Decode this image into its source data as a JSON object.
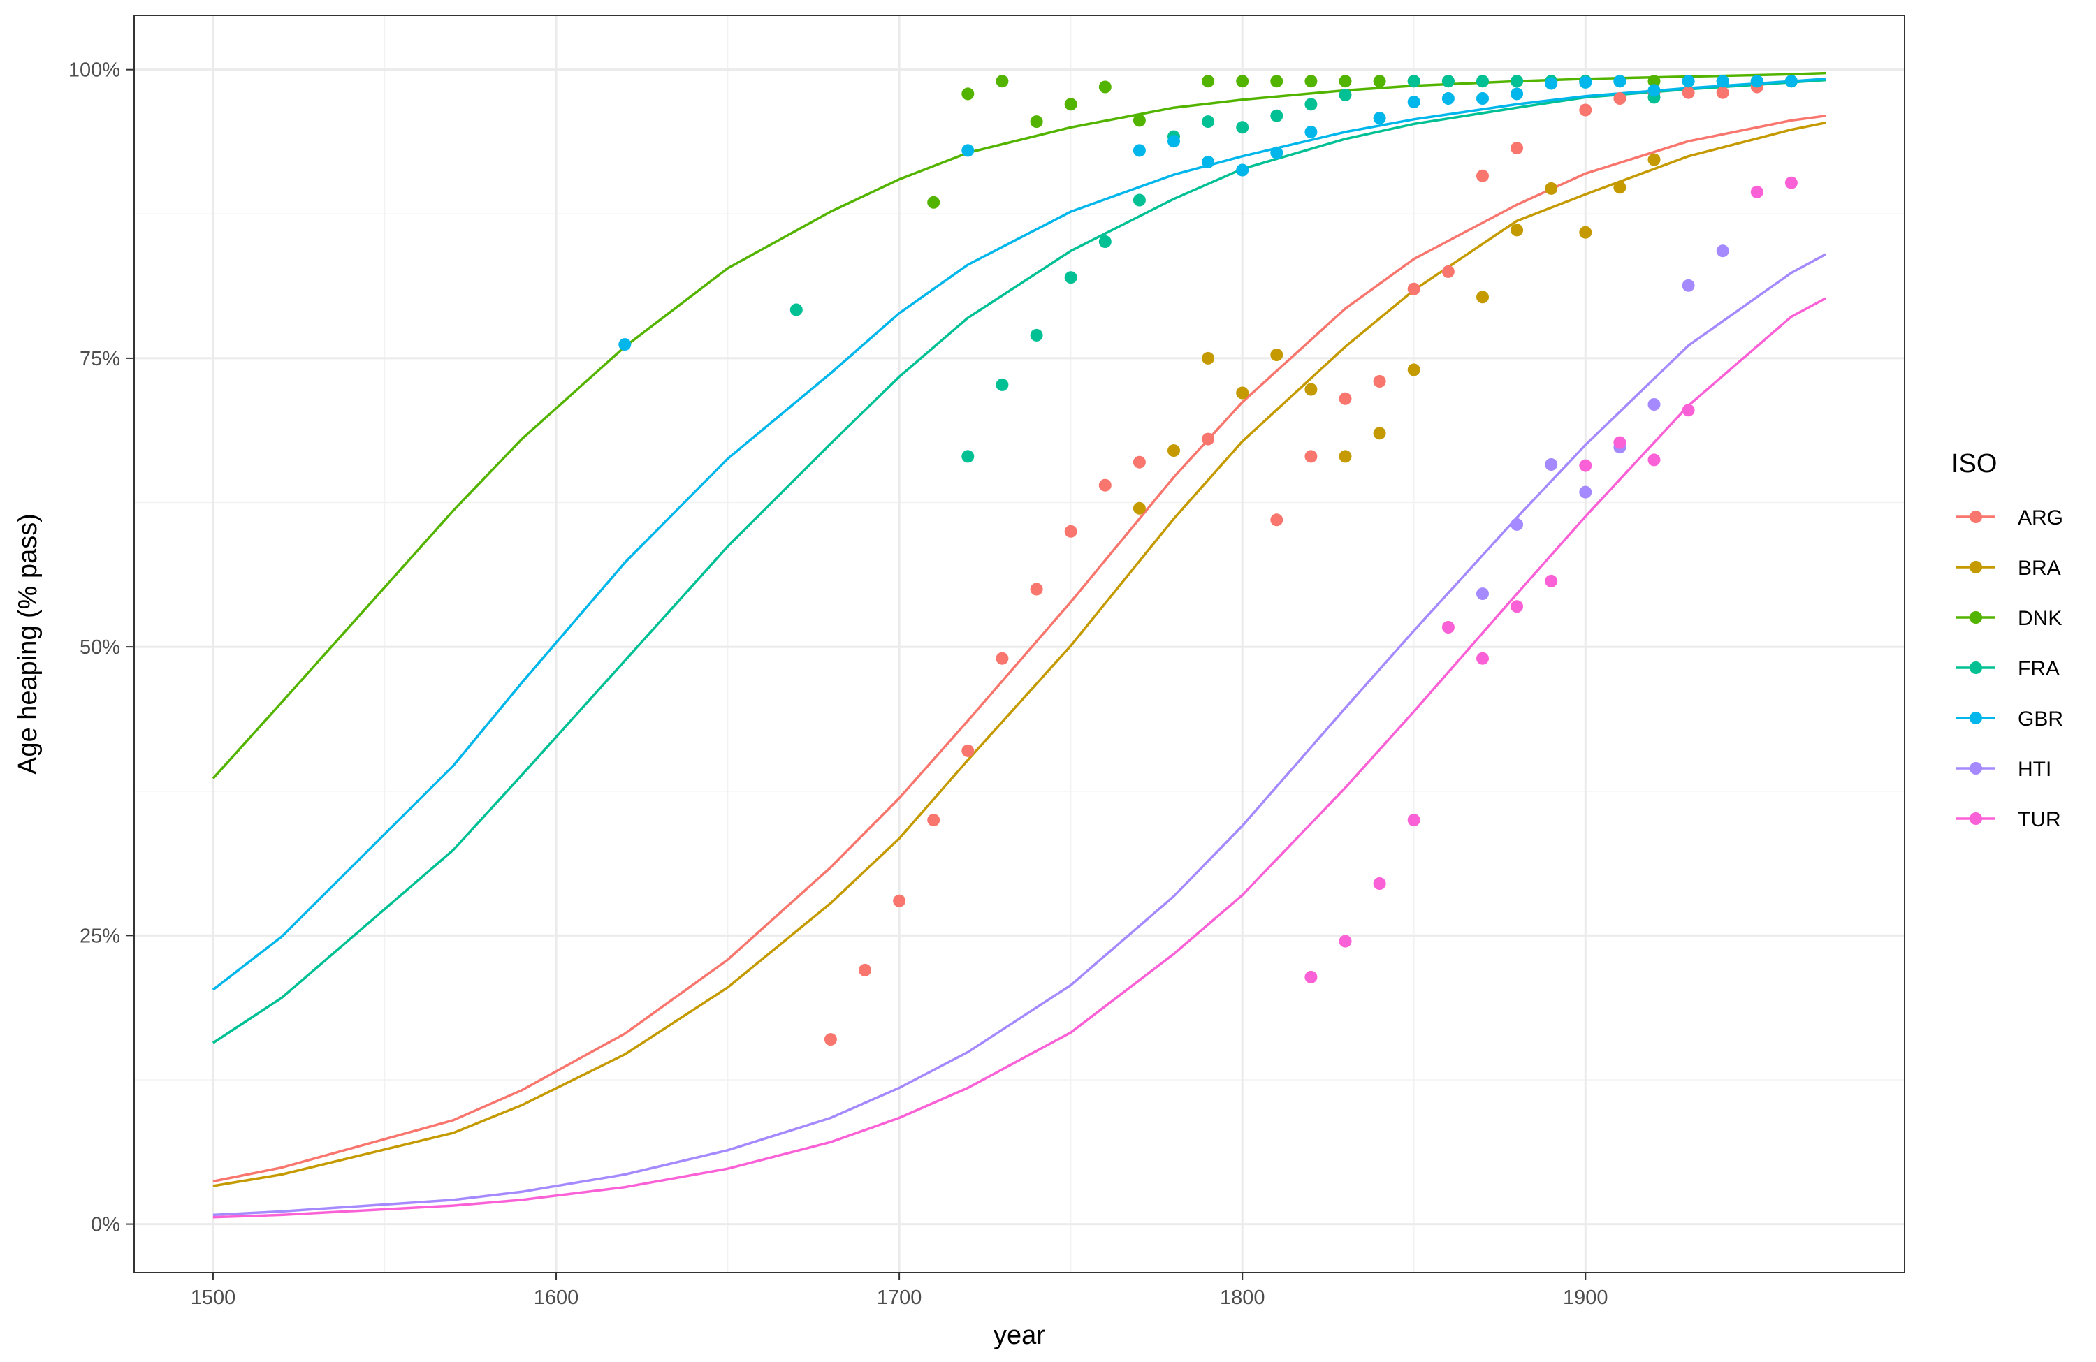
{
  "chart_data": {
    "type": "scatter",
    "xlabel": "year",
    "ylabel": "Age heaping (% pass)",
    "legend_title": "ISO",
    "legend_position": "right",
    "grid": true,
    "xlim": [
      1477,
      1993
    ],
    "ylim": [
      -4.2,
      104.7
    ],
    "x_ticks": [
      1500,
      1600,
      1700,
      1800,
      1900
    ],
    "y_ticks": [
      0,
      25,
      50,
      75,
      100
    ],
    "y_tick_labels": [
      "0%",
      "25%",
      "50%",
      "75%",
      "100%"
    ],
    "series": [
      {
        "name": "ARG",
        "color": "#F8766D",
        "points": [
          [
            1680,
            16
          ],
          [
            1690,
            22
          ],
          [
            1700,
            28
          ],
          [
            1710,
            35
          ],
          [
            1720,
            41
          ],
          [
            1730,
            49
          ],
          [
            1740,
            55
          ],
          [
            1750,
            60
          ],
          [
            1760,
            64
          ],
          [
            1770,
            66
          ],
          [
            1790,
            68
          ],
          [
            1810,
            61
          ],
          [
            1820,
            66.5
          ],
          [
            1830,
            71.5
          ],
          [
            1840,
            73
          ],
          [
            1850,
            81
          ],
          [
            1860,
            82.5
          ],
          [
            1870,
            90.8
          ],
          [
            1880,
            93.2
          ],
          [
            1900,
            96.5
          ],
          [
            1910,
            97.5
          ],
          [
            1920,
            98
          ],
          [
            1930,
            98
          ],
          [
            1940,
            98
          ],
          [
            1950,
            98.5
          ]
        ],
        "fit": [
          [
            1500,
            3.7
          ],
          [
            1520,
            4.9
          ],
          [
            1570,
            9.0
          ],
          [
            1590,
            11.6
          ],
          [
            1620,
            16.5
          ],
          [
            1650,
            22.9
          ],
          [
            1680,
            30.9
          ],
          [
            1700,
            36.9
          ],
          [
            1720,
            43.6
          ],
          [
            1750,
            53.9
          ],
          [
            1780,
            64.7
          ],
          [
            1800,
            71.2
          ],
          [
            1830,
            79.3
          ],
          [
            1850,
            83.6
          ],
          [
            1880,
            88.3
          ],
          [
            1900,
            91.0
          ],
          [
            1930,
            93.8
          ],
          [
            1960,
            95.6
          ],
          [
            1970,
            96.0
          ]
        ]
      },
      {
        "name": "BRA",
        "color": "#C49A00",
        "points": [
          [
            1770,
            62
          ],
          [
            1780,
            67
          ],
          [
            1790,
            75
          ],
          [
            1800,
            72
          ],
          [
            1810,
            75.3
          ],
          [
            1820,
            72.3
          ],
          [
            1830,
            66.5
          ],
          [
            1840,
            68.5
          ],
          [
            1850,
            74
          ],
          [
            1870,
            80.3
          ],
          [
            1880,
            86.1
          ],
          [
            1890,
            89.7
          ],
          [
            1900,
            85.9
          ],
          [
            1910,
            89.8
          ],
          [
            1920,
            92.2
          ]
        ],
        "fit": [
          [
            1500,
            3.3
          ],
          [
            1520,
            4.3
          ],
          [
            1570,
            7.9
          ],
          [
            1590,
            10.3
          ],
          [
            1620,
            14.7
          ],
          [
            1650,
            20.5
          ],
          [
            1680,
            27.8
          ],
          [
            1700,
            33.4
          ],
          [
            1720,
            40.2
          ],
          [
            1750,
            50.1
          ],
          [
            1780,
            61.1
          ],
          [
            1800,
            67.8
          ],
          [
            1830,
            76.0
          ],
          [
            1850,
            80.9
          ],
          [
            1880,
            86.9
          ],
          [
            1900,
            89.2
          ],
          [
            1930,
            92.5
          ],
          [
            1960,
            94.8
          ],
          [
            1970,
            95.4
          ]
        ]
      },
      {
        "name": "DNK",
        "color": "#53B400",
        "points": [
          [
            1710,
            88.5
          ],
          [
            1720,
            97.9
          ],
          [
            1730,
            99
          ],
          [
            1740,
            95.5
          ],
          [
            1750,
            97
          ],
          [
            1760,
            98.5
          ],
          [
            1770,
            95.6
          ],
          [
            1790,
            99
          ],
          [
            1800,
            99
          ],
          [
            1810,
            99
          ],
          [
            1820,
            99
          ],
          [
            1830,
            99
          ],
          [
            1840,
            99
          ],
          [
            1850,
            99
          ],
          [
            1860,
            99
          ],
          [
            1870,
            99
          ],
          [
            1880,
            99
          ],
          [
            1890,
            99
          ],
          [
            1900,
            99
          ],
          [
            1910,
            99
          ],
          [
            1920,
            99
          ],
          [
            1930,
            99
          ],
          [
            1940,
            99
          ],
          [
            1950,
            99
          ],
          [
            1960,
            99
          ]
        ],
        "fit": [
          [
            1500,
            38.6
          ],
          [
            1520,
            45.2
          ],
          [
            1570,
            61.8
          ],
          [
            1590,
            68.0
          ],
          [
            1620,
            76.0
          ],
          [
            1650,
            82.8
          ],
          [
            1680,
            87.7
          ],
          [
            1700,
            90.5
          ],
          [
            1720,
            92.8
          ],
          [
            1750,
            95.0
          ],
          [
            1780,
            96.7
          ],
          [
            1800,
            97.4
          ],
          [
            1830,
            98.2
          ],
          [
            1850,
            98.6
          ],
          [
            1880,
            99.0
          ],
          [
            1900,
            99.2
          ],
          [
            1930,
            99.4
          ],
          [
            1960,
            99.6
          ],
          [
            1970,
            99.7
          ]
        ]
      },
      {
        "name": "FRA",
        "color": "#00C094",
        "points": [
          [
            1670,
            79.2
          ],
          [
            1720,
            66.5
          ],
          [
            1730,
            72.7
          ],
          [
            1740,
            77
          ],
          [
            1750,
            82
          ],
          [
            1760,
            85.1
          ],
          [
            1770,
            88.7
          ],
          [
            1780,
            94.2
          ],
          [
            1790,
            95.5
          ],
          [
            1800,
            95
          ],
          [
            1810,
            96
          ],
          [
            1820,
            97
          ],
          [
            1830,
            97.8
          ],
          [
            1850,
            99
          ],
          [
            1860,
            99
          ],
          [
            1870,
            99
          ],
          [
            1880,
            99
          ],
          [
            1890,
            99
          ],
          [
            1900,
            99
          ],
          [
            1910,
            99
          ],
          [
            1920,
            97.6
          ],
          [
            1930,
            99
          ],
          [
            1940,
            99
          ],
          [
            1950,
            99
          ],
          [
            1960,
            99
          ]
        ],
        "fit": [
          [
            1500,
            15.7
          ],
          [
            1520,
            19.6
          ],
          [
            1570,
            32.4
          ],
          [
            1590,
            38.9
          ],
          [
            1620,
            48.8
          ],
          [
            1650,
            58.7
          ],
          [
            1680,
            67.6
          ],
          [
            1700,
            73.4
          ],
          [
            1720,
            78.5
          ],
          [
            1750,
            84.3
          ],
          [
            1780,
            88.8
          ],
          [
            1800,
            91.4
          ],
          [
            1830,
            94.0
          ],
          [
            1850,
            95.3
          ],
          [
            1880,
            96.7
          ],
          [
            1900,
            97.6
          ],
          [
            1930,
            98.3
          ],
          [
            1960,
            98.9
          ],
          [
            1970,
            99.1
          ]
        ]
      },
      {
        "name": "GBR",
        "color": "#00B6EB",
        "points": [
          [
            1620,
            76.2
          ],
          [
            1720,
            93
          ],
          [
            1770,
            93
          ],
          [
            1780,
            93.8
          ],
          [
            1790,
            92
          ],
          [
            1800,
            91.3
          ],
          [
            1810,
            92.8
          ],
          [
            1820,
            94.6
          ],
          [
            1840,
            95.8
          ],
          [
            1850,
            97.2
          ],
          [
            1860,
            97.5
          ],
          [
            1870,
            97.5
          ],
          [
            1880,
            97.9
          ],
          [
            1890,
            98.8
          ],
          [
            1900,
            98.9
          ],
          [
            1910,
            99
          ],
          [
            1920,
            98.2
          ],
          [
            1930,
            99
          ],
          [
            1940,
            99
          ],
          [
            1950,
            99
          ],
          [
            1960,
            99
          ]
        ],
        "fit": [
          [
            1500,
            20.3
          ],
          [
            1520,
            24.9
          ],
          [
            1570,
            39.7
          ],
          [
            1590,
            46.9
          ],
          [
            1620,
            57.3
          ],
          [
            1650,
            66.3
          ],
          [
            1680,
            73.7
          ],
          [
            1700,
            78.9
          ],
          [
            1720,
            83.1
          ],
          [
            1750,
            87.7
          ],
          [
            1780,
            90.9
          ],
          [
            1800,
            92.5
          ],
          [
            1830,
            94.6
          ],
          [
            1850,
            95.7
          ],
          [
            1880,
            97.0
          ],
          [
            1900,
            97.7
          ],
          [
            1930,
            98.4
          ],
          [
            1960,
            99.0
          ],
          [
            1970,
            99.2
          ]
        ]
      },
      {
        "name": "HTI",
        "color": "#A58AFF",
        "points": [
          [
            1870,
            54.6
          ],
          [
            1880,
            60.6
          ],
          [
            1890,
            65.8
          ],
          [
            1900,
            63.4
          ],
          [
            1910,
            67.3
          ],
          [
            1920,
            71
          ],
          [
            1930,
            81.3
          ],
          [
            1940,
            84.3
          ]
        ],
        "fit": [
          [
            1500,
            0.8
          ],
          [
            1520,
            1.1
          ],
          [
            1570,
            2.1
          ],
          [
            1590,
            2.8
          ],
          [
            1620,
            4.3
          ],
          [
            1650,
            6.4
          ],
          [
            1680,
            9.2
          ],
          [
            1700,
            11.8
          ],
          [
            1720,
            14.9
          ],
          [
            1750,
            20.7
          ],
          [
            1780,
            28.4
          ],
          [
            1800,
            34.5
          ],
          [
            1830,
            44.7
          ],
          [
            1850,
            51.4
          ],
          [
            1880,
            61.2
          ],
          [
            1900,
            67.5
          ],
          [
            1930,
            76.1
          ],
          [
            1960,
            82.4
          ],
          [
            1970,
            84.0
          ]
        ]
      },
      {
        "name": "TUR",
        "color": "#FB61D7",
        "points": [
          [
            1820,
            21.4
          ],
          [
            1830,
            24.5
          ],
          [
            1840,
            29.5
          ],
          [
            1850,
            35
          ],
          [
            1860,
            51.7
          ],
          [
            1870,
            49
          ],
          [
            1880,
            53.5
          ],
          [
            1890,
            55.7
          ],
          [
            1900,
            65.7
          ],
          [
            1910,
            67.7
          ],
          [
            1920,
            66.2
          ],
          [
            1930,
            70.5
          ],
          [
            1950,
            89.4
          ],
          [
            1960,
            90.2
          ]
        ],
        "fit": [
          [
            1500,
            0.6
          ],
          [
            1520,
            0.8
          ],
          [
            1570,
            1.6
          ],
          [
            1590,
            2.1
          ],
          [
            1620,
            3.2
          ],
          [
            1650,
            4.8
          ],
          [
            1680,
            7.1
          ],
          [
            1700,
            9.2
          ],
          [
            1720,
            11.8
          ],
          [
            1750,
            16.6
          ],
          [
            1780,
            23.4
          ],
          [
            1800,
            28.5
          ],
          [
            1830,
            37.8
          ],
          [
            1850,
            44.4
          ],
          [
            1880,
            54.6
          ],
          [
            1900,
            61.3
          ],
          [
            1930,
            70.9
          ],
          [
            1960,
            78.6
          ],
          [
            1970,
            80.2
          ]
        ]
      }
    ]
  }
}
